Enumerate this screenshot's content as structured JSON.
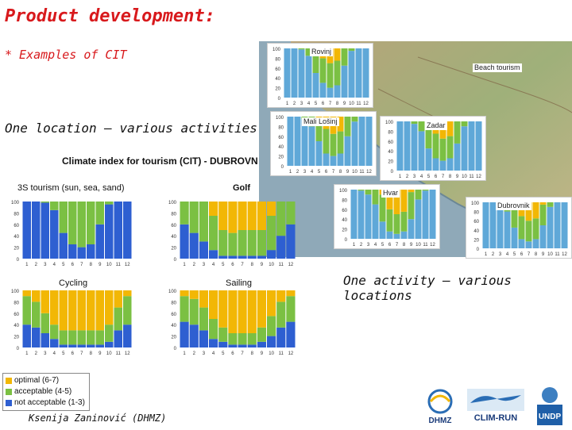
{
  "header": {
    "title": "Product development:",
    "subtitle": "* Examples of CIT"
  },
  "sections": {
    "left_heading": "One location – various activities",
    "right_heading": "One activity – various locations"
  },
  "left_panel": {
    "chart_title": "Climate index for tourism (CIT) - DUBROVN"
  },
  "map": {
    "beach_label": "Beach tourism"
  },
  "legend": {
    "items": [
      {
        "label": "optimal (6-7)",
        "color": "#f2b705"
      },
      {
        "label": "acceptable (4-5)",
        "color": "#7bc043"
      },
      {
        "label": "not acceptable (1-3)",
        "color": "#2e5fd1"
      }
    ]
  },
  "footer": {
    "author": "Ksenija Zaninović (DHMZ)",
    "logos": [
      "DHMZ",
      "CLIM-RUN",
      "UNDP"
    ]
  },
  "colors": {
    "title": "#d8191c",
    "optimal": "#f2b705",
    "acceptable": "#7bc043",
    "not_acceptable": "#5fa8d8",
    "not_acceptable_left": "#2e5fd1"
  },
  "chart_data": [
    {
      "type": "bar",
      "stacked": true,
      "title": "3S tourism (sun, sea, sand)",
      "categories": [
        "1",
        "2",
        "3",
        "4",
        "5",
        "6",
        "7",
        "8",
        "9",
        "10",
        "11",
        "12"
      ],
      "ylim": [
        0,
        100
      ],
      "yticks": [
        "0",
        "20",
        "40",
        "60",
        "80",
        "100"
      ],
      "series": [
        {
          "name": "not acceptable (1-3)",
          "values": [
            100,
            100,
            98,
            85,
            45,
            25,
            20,
            25,
            60,
            95,
            100,
            100
          ]
        },
        {
          "name": "acceptable (4-5)",
          "values": [
            0,
            0,
            2,
            15,
            55,
            75,
            80,
            75,
            40,
            5,
            0,
            0
          ]
        },
        {
          "name": "optimal (6-7)",
          "values": [
            0,
            0,
            0,
            0,
            0,
            0,
            0,
            0,
            0,
            0,
            0,
            0
          ]
        }
      ]
    },
    {
      "type": "bar",
      "stacked": true,
      "title": "Golf",
      "categories": [
        "1",
        "2",
        "3",
        "4",
        "5",
        "6",
        "7",
        "8",
        "9",
        "10",
        "11",
        "12"
      ],
      "ylim": [
        0,
        100
      ],
      "yticks": [
        "0",
        "20",
        "40",
        "60",
        "80",
        "100"
      ],
      "series": [
        {
          "name": "not acceptable (1-3)",
          "values": [
            60,
            45,
            30,
            15,
            5,
            5,
            5,
            5,
            5,
            15,
            40,
            60
          ]
        },
        {
          "name": "acceptable (4-5)",
          "values": [
            40,
            55,
            70,
            60,
            45,
            40,
            45,
            45,
            45,
            60,
            60,
            40
          ]
        },
        {
          "name": "optimal (6-7)",
          "values": [
            0,
            0,
            0,
            25,
            50,
            55,
            50,
            50,
            50,
            25,
            0,
            0
          ]
        }
      ]
    },
    {
      "type": "bar",
      "stacked": true,
      "title": "Cycling",
      "categories": [
        "1",
        "2",
        "3",
        "4",
        "5",
        "6",
        "7",
        "8",
        "9",
        "10",
        "11",
        "12"
      ],
      "ylim": [
        0,
        100
      ],
      "yticks": [
        "0",
        "20",
        "40",
        "60",
        "80",
        "100"
      ],
      "series": [
        {
          "name": "not acceptable (1-3)",
          "values": [
            40,
            35,
            25,
            15,
            5,
            5,
            5,
            5,
            5,
            10,
            30,
            40
          ]
        },
        {
          "name": "acceptable (4-5)",
          "values": [
            50,
            45,
            35,
            25,
            25,
            25,
            25,
            25,
            25,
            30,
            40,
            50
          ]
        },
        {
          "name": "optimal (6-7)",
          "values": [
            10,
            20,
            40,
            60,
            70,
            70,
            70,
            70,
            70,
            60,
            30,
            10
          ]
        }
      ]
    },
    {
      "type": "bar",
      "stacked": true,
      "title": "Sailing",
      "categories": [
        "1",
        "2",
        "3",
        "4",
        "5",
        "6",
        "7",
        "8",
        "9",
        "10",
        "11",
        "12"
      ],
      "ylim": [
        0,
        100
      ],
      "yticks": [
        "0",
        "20",
        "40",
        "60",
        "80",
        "100"
      ],
      "series": [
        {
          "name": "not acceptable (1-3)",
          "values": [
            45,
            40,
            30,
            15,
            10,
            5,
            5,
            5,
            10,
            20,
            35,
            45
          ]
        },
        {
          "name": "acceptable (4-5)",
          "values": [
            45,
            45,
            40,
            35,
            25,
            20,
            20,
            20,
            25,
            35,
            45,
            45
          ]
        },
        {
          "name": "optimal (6-7)",
          "values": [
            10,
            15,
            30,
            50,
            65,
            75,
            75,
            75,
            65,
            45,
            20,
            10
          ]
        }
      ]
    },
    {
      "type": "bar",
      "stacked": true,
      "title": "Rovinj",
      "categories": [
        "1",
        "2",
        "3",
        "4",
        "5",
        "6",
        "7",
        "8",
        "9",
        "10",
        "11",
        "12"
      ],
      "ylim": [
        0,
        100
      ],
      "yticks": [
        "0",
        "20",
        "40",
        "60",
        "80",
        "100"
      ],
      "series": [
        {
          "name": "not acceptable (1-3)",
          "values": [
            100,
            100,
            98,
            85,
            50,
            30,
            20,
            25,
            65,
            95,
            100,
            100
          ]
        },
        {
          "name": "acceptable (4-5)",
          "values": [
            0,
            0,
            2,
            15,
            45,
            50,
            50,
            50,
            35,
            5,
            0,
            0
          ]
        },
        {
          "name": "optimal (6-7)",
          "values": [
            0,
            0,
            0,
            0,
            5,
            20,
            30,
            25,
            0,
            0,
            0,
            0
          ]
        }
      ]
    },
    {
      "type": "bar",
      "stacked": true,
      "title": "Mali Lošinj",
      "categories": [
        "1",
        "2",
        "3",
        "4",
        "5",
        "6",
        "7",
        "8",
        "9",
        "10",
        "11",
        "12"
      ],
      "ylim": [
        0,
        100
      ],
      "yticks": [
        "0",
        "20",
        "40",
        "60",
        "80",
        "100"
      ],
      "series": [
        {
          "name": "not acceptable (1-3)",
          "values": [
            100,
            100,
            95,
            80,
            50,
            25,
            20,
            25,
            60,
            90,
            100,
            100
          ]
        },
        {
          "name": "acceptable (4-5)",
          "values": [
            0,
            0,
            5,
            20,
            45,
            50,
            45,
            45,
            40,
            10,
            0,
            0
          ]
        },
        {
          "name": "optimal (6-7)",
          "values": [
            0,
            0,
            0,
            0,
            5,
            25,
            35,
            30,
            0,
            0,
            0,
            0
          ]
        }
      ]
    },
    {
      "type": "bar",
      "stacked": true,
      "title": "Zadar",
      "categories": [
        "1",
        "2",
        "3",
        "4",
        "5",
        "6",
        "7",
        "8",
        "9",
        "10",
        "11",
        "12"
      ],
      "ylim": [
        0,
        100
      ],
      "yticks": [
        "0",
        "20",
        "40",
        "60",
        "80",
        "100"
      ],
      "series": [
        {
          "name": "not acceptable (1-3)",
          "values": [
            100,
            100,
            95,
            80,
            45,
            25,
            20,
            25,
            55,
            90,
            100,
            100
          ]
        },
        {
          "name": "acceptable (4-5)",
          "values": [
            0,
            0,
            5,
            20,
            50,
            50,
            45,
            45,
            45,
            10,
            0,
            0
          ]
        },
        {
          "name": "optimal (6-7)",
          "values": [
            0,
            0,
            0,
            0,
            5,
            25,
            35,
            30,
            0,
            0,
            0,
            0
          ]
        }
      ]
    },
    {
      "type": "bar",
      "stacked": true,
      "title": "Hvar",
      "categories": [
        "1",
        "2",
        "3",
        "4",
        "5",
        "6",
        "7",
        "8",
        "9",
        "10",
        "11",
        "12"
      ],
      "ylim": [
        0,
        100
      ],
      "yticks": [
        "0",
        "20",
        "40",
        "60",
        "80",
        "100"
      ],
      "series": [
        {
          "name": "not acceptable (1-3)",
          "values": [
            100,
            98,
            90,
            70,
            35,
            15,
            10,
            15,
            40,
            80,
            98,
            100
          ]
        },
        {
          "name": "acceptable (4-5)",
          "values": [
            0,
            2,
            10,
            30,
            55,
            45,
            40,
            40,
            55,
            20,
            2,
            0
          ]
        },
        {
          "name": "optimal (6-7)",
          "values": [
            0,
            0,
            0,
            0,
            10,
            40,
            50,
            45,
            5,
            0,
            0,
            0
          ]
        }
      ]
    },
    {
      "type": "bar",
      "stacked": true,
      "title": "Dubrovnik",
      "categories": [
        "1",
        "2",
        "3",
        "4",
        "5",
        "6",
        "7",
        "8",
        "9",
        "10",
        "11",
        "12"
      ],
      "ylim": [
        0,
        100
      ],
      "yticks": [
        "0",
        "20",
        "40",
        "60",
        "80",
        "100"
      ],
      "series": [
        {
          "name": "not acceptable (1-3)",
          "values": [
            100,
            100,
            95,
            80,
            45,
            20,
            15,
            20,
            50,
            90,
            100,
            100
          ]
        },
        {
          "name": "acceptable (4-5)",
          "values": [
            0,
            0,
            5,
            20,
            50,
            50,
            45,
            45,
            45,
            10,
            0,
            0
          ]
        },
        {
          "name": "optimal (6-7)",
          "values": [
            0,
            0,
            0,
            0,
            5,
            30,
            40,
            35,
            5,
            0,
            0,
            0
          ]
        }
      ]
    }
  ]
}
